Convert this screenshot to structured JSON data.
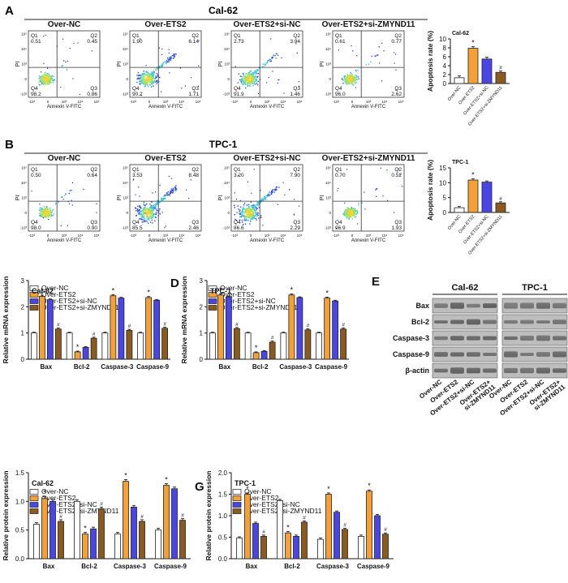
{
  "colors": {
    "nc": "#ffffff",
    "ets2": "#f5a037",
    "sinc": "#4a46e6",
    "sizm": "#8b5a1e",
    "outline": "#222222"
  },
  "sig": {
    "star": "*",
    "hash": "#"
  },
  "legend4": [
    "Over-NC",
    "Over-ETS2",
    "Over-ETS2+si-NC",
    "Over-ETS2+si-ZMYND11"
  ],
  "flow": {
    "axis": {
      "x": "Annexin V-FITC",
      "y": "PI"
    },
    "xticks": [
      "-10³",
      "0",
      "10³",
      "10⁴",
      "10⁵"
    ],
    "yticks": [
      "10⁵",
      "10⁴",
      "10³",
      "0",
      "-10³"
    ],
    "quad": {
      "q1": "Q1",
      "q2": "Q2",
      "q3": "Q3",
      "q4": "Q4"
    },
    "A": {
      "label": "A",
      "title": "Cal-62",
      "panels": [
        {
          "title": "Over-NC",
          "q1": "0.51",
          "q2": "0.45",
          "q3": "0.86",
          "q4": "98.2"
        },
        {
          "title": "Over-ETS2",
          "q1": "1.90",
          "q2": "6.14",
          "q3": "1.71",
          "q4": "90.2"
        },
        {
          "title": "Over-ETS2+si-NC",
          "q1": "2.73",
          "q2": "3.94",
          "q3": "1.46",
          "q4": "91.9"
        },
        {
          "title": "Over-ETS2+si-ZMYND11",
          "q1": "0.61",
          "q2": "0.77",
          "q3": "2.62",
          "q4": "96.0"
        }
      ]
    },
    "B": {
      "label": "B",
      "title": "TPC-1",
      "panels": [
        {
          "title": "Over-NC",
          "q1": "0.50",
          "q2": "0.64",
          "q3": "0.90",
          "q4": "98.0"
        },
        {
          "title": "Over-ETS2",
          "q1": "3.53",
          "q2": "8.48",
          "q3": "2.46",
          "q4": "85.5"
        },
        {
          "title": "Over-ETS2+si-NC",
          "q1": "3.20",
          "q2": "7.90",
          "q3": "2.29",
          "q4": "86.6"
        },
        {
          "title": "Over-ETS2+si-ZMYND11",
          "q1": "0.70",
          "q2": "0.52",
          "q3": "1.93",
          "q4": "96.9"
        }
      ]
    }
  },
  "wb": {
    "label": "E",
    "groups": [
      "Cal-62",
      "TPC-1"
    ],
    "rows": [
      "Bax",
      "Bcl-2",
      "Caspase-3",
      "Caspase-9",
      "β-actin"
    ],
    "lanes": [
      "Over-NC",
      "Over-ETS2",
      "Over-ETS2+si-NC",
      "Over-ETS2+",
      "si-ZMYND11"
    ]
  },
  "chart_data": [
    {
      "id": "apoA",
      "type": "bar",
      "title": "Cal-62",
      "ylabel": "Apoptosis rate (%)",
      "ylim": [
        0,
        10
      ],
      "yticks": [
        0,
        2,
        4,
        6,
        8,
        10
      ],
      "categories": [
        "Over-NC",
        "Over-ETS2",
        "Over-ETS2+si-NC",
        "Over-ETS2+si-ZMYND11"
      ],
      "values": [
        1.3,
        7.9,
        5.5,
        2.5
      ],
      "errors": [
        0.4,
        0.4,
        0.4,
        0.3
      ],
      "annotations": [
        "",
        "*",
        "",
        "#"
      ]
    },
    {
      "id": "apoB",
      "type": "bar",
      "title": "TPC-1",
      "ylabel": "Apoptosis rate (%)",
      "ylim": [
        0,
        15
      ],
      "yticks": [
        0,
        5,
        10,
        15
      ],
      "categories": [
        "Over-NC",
        "Over-ETS2",
        "Over-ETS2+si-NC",
        "Over-ETS2+si-ZMYND11"
      ],
      "values": [
        1.6,
        10.9,
        10.2,
        3.2
      ],
      "errors": [
        0.4,
        0.4,
        0.4,
        0.4
      ],
      "annotations": [
        "",
        "*",
        "",
        "#"
      ]
    },
    {
      "id": "C",
      "label": "C",
      "type": "bar",
      "title": "Cal-62",
      "ylabel": "Relative mRNA expression",
      "ylim": [
        0,
        3
      ],
      "yticks": [
        0,
        1,
        2,
        3
      ],
      "categories": [
        "Bax",
        "Bcl-2",
        "Caspase-3",
        "Caspase-9"
      ],
      "series": [
        {
          "name": "Over-NC",
          "values": [
            1.0,
            1.0,
            1.0,
            1.0
          ],
          "errors": [
            0.03,
            0.03,
            0.03,
            0.03
          ],
          "annotations": [
            "",
            "",
            "",
            ""
          ]
        },
        {
          "name": "Over-ETS2",
          "values": [
            2.4,
            0.28,
            2.42,
            2.35
          ],
          "errors": [
            0.04,
            0.03,
            0.04,
            0.04
          ],
          "annotations": [
            "*",
            "*",
            "*",
            "*"
          ]
        },
        {
          "name": "Over-ETS2+si-NC",
          "values": [
            2.27,
            0.45,
            2.33,
            2.25
          ],
          "errors": [
            0.03,
            0.03,
            0.03,
            0.03
          ],
          "annotations": [
            "",
            "",
            "",
            ""
          ]
        },
        {
          "name": "Over-ETS2+si-ZMYND11",
          "values": [
            1.15,
            0.8,
            1.1,
            1.18
          ],
          "errors": [
            0.04,
            0.04,
            0.04,
            0.04
          ],
          "annotations": [
            "#",
            "#",
            "#",
            "#"
          ]
        }
      ]
    },
    {
      "id": "D",
      "label": "D",
      "type": "bar",
      "title": "TPC-1",
      "ylabel": "Relative mRNA expression",
      "ylim": [
        0,
        3
      ],
      "yticks": [
        0,
        1,
        2,
        3
      ],
      "categories": [
        "Bax",
        "Bcl-2",
        "Caspase-3",
        "Caspase-9"
      ],
      "series": [
        {
          "name": "Over-NC",
          "values": [
            1.0,
            1.0,
            1.0,
            1.0
          ],
          "errors": [
            0.03,
            0.03,
            0.03,
            0.03
          ],
          "annotations": [
            "",
            "",
            "",
            ""
          ]
        },
        {
          "name": "Over-ETS2",
          "values": [
            2.45,
            0.25,
            2.45,
            2.33
          ],
          "errors": [
            0.04,
            0.03,
            0.04,
            0.04
          ],
          "annotations": [
            "*",
            "*",
            "*",
            "*"
          ]
        },
        {
          "name": "Over-ETS2+si-NC",
          "values": [
            2.38,
            0.3,
            2.35,
            2.22
          ],
          "errors": [
            0.03,
            0.03,
            0.03,
            0.03
          ],
          "annotations": [
            "",
            "",
            "",
            ""
          ]
        },
        {
          "name": "Over-ETS2+si-ZMYND11",
          "values": [
            1.17,
            0.65,
            1.12,
            1.15
          ],
          "errors": [
            0.04,
            0.04,
            0.04,
            0.04
          ],
          "annotations": [
            "#",
            "#",
            "#",
            "#"
          ]
        }
      ]
    },
    {
      "id": "F",
      "label": "F",
      "type": "bar",
      "title": "Cal-62",
      "ylabel": "Relative protein expression",
      "ylim": [
        0,
        1.5
      ],
      "yticks": [
        0.0,
        0.5,
        1.0,
        1.5
      ],
      "categories": [
        "Bax",
        "Bcl-2",
        "Caspase-3",
        "Caspase-9"
      ],
      "series": [
        {
          "name": "Over-NC",
          "values": [
            0.6,
            1.0,
            0.43,
            0.5
          ],
          "errors": [
            0.03,
            0.03,
            0.03,
            0.03
          ],
          "annotations": [
            "",
            "",
            "",
            ""
          ]
        },
        {
          "name": "Over-ETS2",
          "values": [
            1.05,
            0.43,
            1.35,
            1.28
          ],
          "errors": [
            0.03,
            0.03,
            0.03,
            0.03
          ],
          "annotations": [
            "*",
            "*",
            "*",
            "*"
          ]
        },
        {
          "name": "Over-ETS2+si-NC",
          "values": [
            1.0,
            0.52,
            0.9,
            1.22
          ],
          "errors": [
            0.03,
            0.03,
            0.03,
            0.03
          ],
          "annotations": [
            "",
            "",
            "",
            ""
          ]
        },
        {
          "name": "Over-ETS2+si-ZMYND11",
          "values": [
            0.65,
            0.87,
            0.65,
            0.67
          ],
          "errors": [
            0.03,
            0.03,
            0.03,
            0.03
          ],
          "annotations": [
            "#",
            "#",
            "#",
            "#"
          ]
        }
      ]
    },
    {
      "id": "G",
      "label": "G",
      "type": "bar",
      "title": "TPC-1",
      "ylabel": "Relative protein expression",
      "ylim": [
        0,
        2
      ],
      "yticks": [
        0.0,
        0.5,
        1.0,
        1.5,
        2.0
      ],
      "categories": [
        "Bax",
        "Bcl-2",
        "Caspase-3",
        "Caspase-9"
      ],
      "series": [
        {
          "name": "Over-NC",
          "values": [
            0.48,
            1.35,
            0.45,
            0.52
          ],
          "errors": [
            0.03,
            0.03,
            0.03,
            0.03
          ],
          "annotations": [
            "",
            "",
            "",
            ""
          ]
        },
        {
          "name": "Over-ETS2",
          "values": [
            1.5,
            0.6,
            1.5,
            1.57
          ],
          "errors": [
            0.03,
            0.03,
            0.03,
            0.03
          ],
          "annotations": [
            "*",
            "*",
            "*",
            "*"
          ]
        },
        {
          "name": "Over-ETS2+si-NC",
          "values": [
            0.82,
            0.52,
            1.08,
            1.0
          ],
          "errors": [
            0.03,
            0.03,
            0.03,
            0.03
          ],
          "annotations": [
            "",
            "",
            "",
            ""
          ]
        },
        {
          "name": "Over-ETS2+si-ZMYND11",
          "values": [
            0.52,
            0.85,
            0.68,
            0.57
          ],
          "errors": [
            0.03,
            0.03,
            0.03,
            0.03
          ],
          "annotations": [
            "#",
            "#",
            "#",
            "#"
          ]
        }
      ]
    }
  ]
}
